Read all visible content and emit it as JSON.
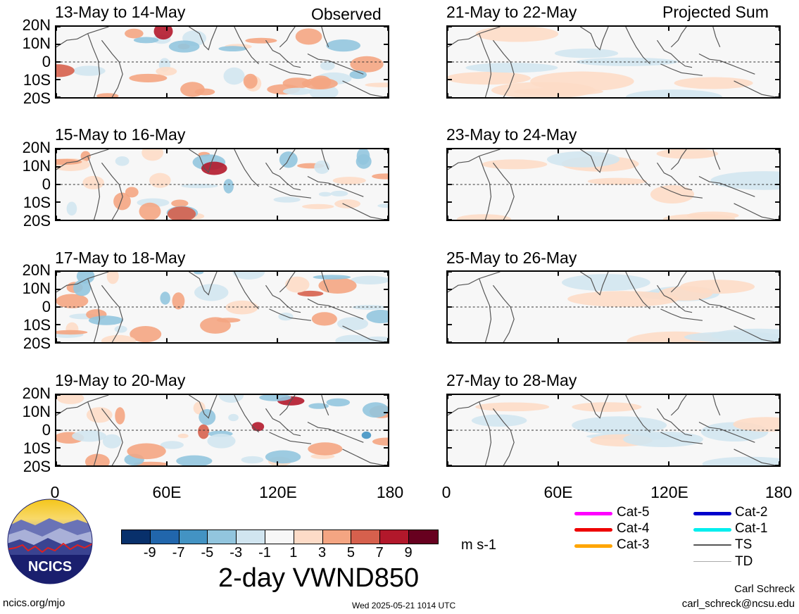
{
  "chart_data": {
    "type": "heatmap",
    "variable": "2-day VWND850",
    "units": "m s-1",
    "lat_ticks": [
      "20N",
      "10N",
      "0",
      "10S",
      "20S"
    ],
    "lon_ticks": [
      "0",
      "60E",
      "120E",
      "180"
    ],
    "colorbar_ticks": [
      "-9",
      "-7",
      "-5",
      "-3",
      "-1",
      "1",
      "3",
      "5",
      "7",
      "9"
    ],
    "colorbar_colors": [
      "#08306b",
      "#2166ac",
      "#4393c3",
      "#92c5de",
      "#d1e5f0",
      "#f7f7f7",
      "#fddbc7",
      "#f4a582",
      "#d6604d",
      "#b2182b",
      "#67001f"
    ],
    "columns": [
      {
        "label": "Observed",
        "panels": [
          "13-May to 14-May",
          "15-May to 16-May",
          "17-May to 18-May",
          "19-May to 20-May"
        ]
      },
      {
        "label": "Projected Sum",
        "panels": [
          "21-May to 22-May",
          "23-May to 24-May",
          "25-May to 26-May",
          "27-May to 28-May"
        ]
      }
    ]
  },
  "legend": {
    "items": [
      {
        "label": "Cat-5",
        "color": "#ff00ff"
      },
      {
        "label": "Cat-4",
        "color": "#ee0000"
      },
      {
        "label": "Cat-3",
        "color": "#ffa500"
      },
      {
        "label": "Cat-2",
        "color": "#0000cc"
      },
      {
        "label": "Cat-1",
        "color": "#00eeee"
      },
      {
        "label": "TS",
        "color": "#555555"
      },
      {
        "label": "TD",
        "color": "#aaaaaa"
      }
    ]
  },
  "footer": {
    "logo_text": "NCICS",
    "url": "ncics.org/mjo",
    "timestamp": "Wed 2025-05-21 1014 UTC",
    "author": "Carl Schreck",
    "email": "carl_schreck@ncsu.edu"
  }
}
